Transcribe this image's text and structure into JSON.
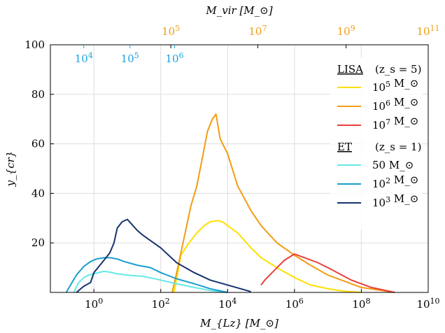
{
  "chart_data": {
    "type": "line",
    "xlabel": "M_{Lz} [M_⊙]",
    "ylabel": "y_{cr}",
    "top_xlabel": "M_vir [M_⊙]",
    "x_scale": "log",
    "xlim": [
      0.05,
      10000000000.0
    ],
    "ylim": [
      0,
      100
    ],
    "grid": true,
    "bottom_ticks": [
      {
        "value": 1,
        "label": "10^0"
      },
      {
        "value": 100,
        "label": "10^2"
      },
      {
        "value": 10000,
        "label": "10^4"
      },
      {
        "value": 1000000,
        "label": "10^6"
      },
      {
        "value": 100000000,
        "label": "10^8"
      },
      {
        "value": 10000000000,
        "label": "10^10"
      }
    ],
    "y_ticks": [
      20,
      40,
      60,
      80,
      100
    ],
    "top_ticks_orange": [
      {
        "position": 200.0,
        "label": "10^5"
      },
      {
        "position": 80000.0,
        "label": "10^7"
      },
      {
        "position": 35000000.0,
        "label": "10^9"
      },
      {
        "position": 10000000000.0,
        "label": "10^11"
      }
    ],
    "top_ticks_blue": [
      {
        "position": 0.5,
        "label": "10^4"
      },
      {
        "position": 12,
        "label": "10^5"
      },
      {
        "position": 260,
        "label": "10^6"
      }
    ],
    "legend": {
      "placement": "right",
      "groups": [
        {
          "title": "LISA",
          "subtitle": "(z_s = 5)",
          "entries": [
            {
              "label": "10^5 M_⊙",
              "color": "#ffdf00"
            },
            {
              "label": "10^6 M_⊙",
              "color": "#f39c12"
            },
            {
              "label": "10^7 M_⊙",
              "color": "#e8403a"
            }
          ]
        },
        {
          "title": "ET",
          "subtitle": "(z_s = 1)",
          "entries": [
            {
              "label": "50 M_⊙",
              "color": "#66e8e8"
            },
            {
              "label": "10^2 M_⊙",
              "color": "#1a9ecf"
            },
            {
              "label": "10^3 M_⊙",
              "color": "#15336e"
            }
          ]
        }
      ]
    },
    "series": [
      {
        "name": "10^5 M_⊙",
        "color": "#ffdf00",
        "x": [
          250,
          400,
          700,
          1200,
          2000,
          3000,
          5000,
          7000,
          10000,
          20000,
          50000,
          100000,
          300000,
          1000000,
          3000000,
          10000000,
          30000000,
          100000000
        ],
        "y": [
          0,
          15,
          20,
          24,
          27,
          28.5,
          29,
          28.5,
          27,
          24,
          18,
          14,
          10,
          6,
          3,
          1.5,
          0.5,
          0
        ]
      },
      {
        "name": "10^6 M_⊙",
        "color": "#f39c12",
        "x": [
          220,
          300,
          500,
          800,
          1200,
          1800,
          2500,
          3500,
          4500,
          6000,
          10000,
          20000,
          50000,
          100000,
          300000,
          1000000,
          3000000,
          10000000,
          100000000,
          1000000000
        ],
        "y": [
          0,
          8,
          22,
          35,
          43,
          55,
          65,
          70,
          72,
          62,
          56,
          43,
          33,
          27,
          20,
          15,
          11,
          7,
          2,
          0
        ]
      },
      {
        "name": "10^7 M_⊙",
        "color": "#e8403a",
        "x": [
          100000,
          130000,
          300000,
          500000,
          1000000,
          2000000,
          5000000,
          10000000,
          50000000,
          200000000,
          1000000000
        ],
        "y": [
          3,
          5,
          10,
          13,
          15.5,
          14,
          12,
          10,
          5,
          2,
          0
        ]
      },
      {
        "name": "50 M_⊙",
        "color": "#66e8e8",
        "x": [
          0.25,
          0.35,
          0.5,
          0.7,
          1,
          2,
          3,
          5,
          10,
          30,
          100,
          300,
          1000,
          3000,
          10000
        ],
        "y": [
          0,
          4,
          6,
          7,
          7.5,
          8.5,
          8.2,
          7.5,
          7,
          6.5,
          5,
          3.5,
          2,
          0.8,
          0
        ]
      },
      {
        "name": "10^2 M_⊙",
        "color": "#1a9ecf",
        "x": [
          0.15,
          0.2,
          0.3,
          0.5,
          0.8,
          1.2,
          2,
          3,
          5,
          8,
          20,
          50,
          100,
          300,
          1000,
          3000,
          10000
        ],
        "y": [
          0,
          3,
          7,
          10.5,
          12.5,
          13.5,
          14,
          14,
          13.5,
          12.5,
          11,
          10,
          8,
          5.5,
          3.5,
          1.5,
          0
        ]
      },
      {
        "name": "10^3 M_⊙",
        "color": "#15336e",
        "x": [
          0.3,
          0.5,
          0.8,
          1,
          2,
          3,
          4,
          5,
          7,
          10,
          20,
          30,
          100,
          300,
          1000,
          3000,
          10000,
          50000
        ],
        "y": [
          0,
          2.5,
          4,
          8,
          13,
          16,
          20,
          26,
          28.5,
          29.5,
          25,
          23,
          18,
          12,
          8,
          5,
          3,
          0.3
        ]
      }
    ]
  }
}
